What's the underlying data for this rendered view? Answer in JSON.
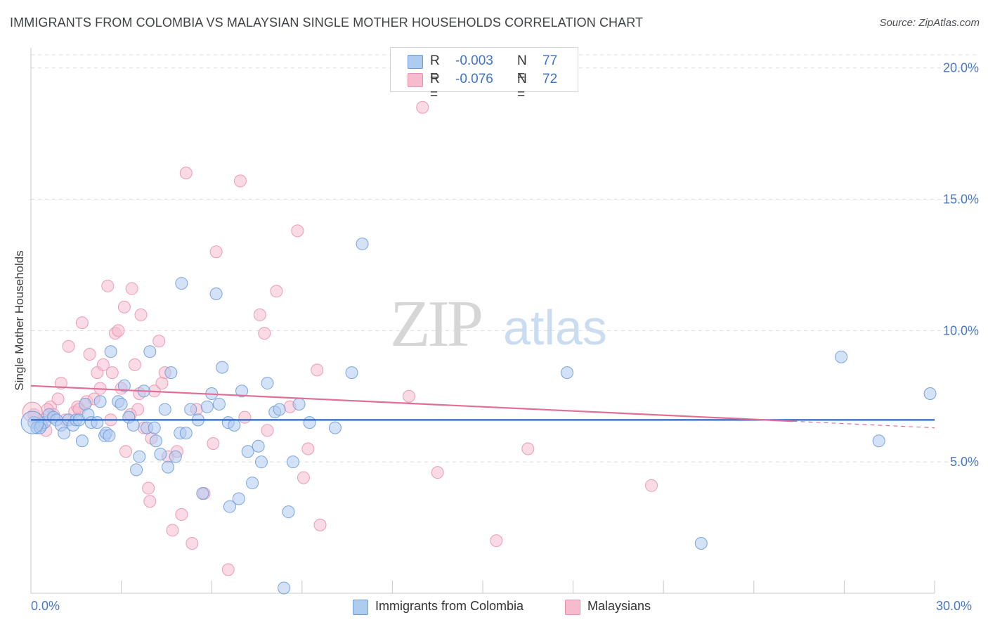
{
  "title": "IMMIGRANTS FROM COLOMBIA VS MALAYSIAN SINGLE MOTHER HOUSEHOLDS CORRELATION CHART",
  "source": "Source: ZipAtlas.com",
  "watermark": {
    "zip": "ZIP",
    "atlas": "atlas"
  },
  "legend_top": [
    {
      "r_label": "R =",
      "r_value": "-0.003",
      "n_label": "N =",
      "n_value": "77"
    },
    {
      "r_label": "R =",
      "r_value": "-0.076",
      "n_label": "N =",
      "n_value": "72"
    }
  ],
  "legend_bottom": [
    "Immigrants from Colombia",
    "Malaysians"
  ],
  "colors": {
    "blue_fill": "#aecbf0",
    "blue_stroke": "#6f9bd8",
    "blue_line": "#2563c9",
    "pink_fill": "#f6bccd",
    "pink_stroke": "#e893b0",
    "pink_line": "#e06f98",
    "grid": "#dcdcdc",
    "tick_text": "#4a78c2"
  },
  "chart_data": {
    "type": "scatter",
    "title": "IMMIGRANTS FROM COLOMBIA VS MALAYSIAN SINGLE MOTHER HOUSEHOLDS CORRELATION CHART",
    "xlabel": "",
    "ylabel": "Single Mother Households",
    "xlim": [
      0,
      30
    ],
    "ylim": [
      0,
      20.5
    ],
    "x_ticks": [
      "0.0%",
      "30.0%"
    ],
    "y_ticks": [
      {
        "value": 5,
        "label": "5.0%"
      },
      {
        "value": 10,
        "label": "10.0%"
      },
      {
        "value": 15,
        "label": "15.0%"
      },
      {
        "value": 20,
        "label": "20.0%"
      }
    ],
    "grid": "horizontal dashed",
    "legend": "top-center and bottom",
    "series": [
      {
        "name": "Immigrants from Colombia",
        "color": "#aecbf0",
        "trend": {
          "x": [
            0,
            30
          ],
          "y": [
            6.6,
            6.6
          ]
        },
        "points": [
          [
            0.1,
            6.5
          ],
          [
            0.2,
            6.3
          ],
          [
            0.35,
            6.4
          ],
          [
            0.45,
            6.5
          ],
          [
            0.6,
            6.8
          ],
          [
            0.75,
            6.7
          ],
          [
            0.85,
            6.6
          ],
          [
            1.0,
            6.4
          ],
          [
            1.1,
            6.1
          ],
          [
            1.25,
            6.6
          ],
          [
            1.4,
            6.4
          ],
          [
            1.5,
            6.6
          ],
          [
            1.6,
            6.6
          ],
          [
            1.7,
            5.8
          ],
          [
            1.8,
            7.2
          ],
          [
            1.9,
            6.8
          ],
          [
            2.0,
            6.5
          ],
          [
            2.3,
            7.3
          ],
          [
            2.45,
            6.0
          ],
          [
            2.5,
            6.1
          ],
          [
            2.6,
            6.0
          ],
          [
            2.65,
            9.2
          ],
          [
            2.9,
            7.3
          ],
          [
            3.0,
            7.2
          ],
          [
            3.1,
            7.9
          ],
          [
            3.25,
            6.7
          ],
          [
            3.4,
            6.4
          ],
          [
            3.5,
            4.7
          ],
          [
            3.6,
            5.2
          ],
          [
            3.75,
            7.7
          ],
          [
            3.85,
            6.3
          ],
          [
            3.95,
            9.2
          ],
          [
            4.1,
            6.3
          ],
          [
            4.15,
            5.8
          ],
          [
            4.3,
            5.3
          ],
          [
            4.45,
            7.0
          ],
          [
            4.55,
            4.8
          ],
          [
            4.65,
            8.4
          ],
          [
            4.8,
            5.2
          ],
          [
            4.95,
            6.1
          ],
          [
            5.15,
            6.1
          ],
          [
            5.0,
            11.8
          ],
          [
            5.3,
            7.0
          ],
          [
            5.55,
            6.6
          ],
          [
            5.7,
            3.8
          ],
          [
            5.85,
            7.1
          ],
          [
            6.0,
            7.6
          ],
          [
            6.15,
            11.4
          ],
          [
            6.25,
            7.2
          ],
          [
            6.35,
            8.6
          ],
          [
            6.55,
            6.5
          ],
          [
            6.6,
            3.3
          ],
          [
            6.75,
            6.4
          ],
          [
            6.9,
            3.6
          ],
          [
            7.0,
            7.7
          ],
          [
            7.2,
            5.4
          ],
          [
            7.35,
            4.2
          ],
          [
            7.55,
            5.6
          ],
          [
            7.65,
            5.0
          ],
          [
            7.85,
            8.0
          ],
          [
            8.1,
            6.9
          ],
          [
            8.25,
            7.0
          ],
          [
            8.4,
            0.2
          ],
          [
            8.55,
            3.1
          ],
          [
            8.7,
            5.0
          ],
          [
            8.9,
            7.2
          ],
          [
            9.25,
            6.5
          ],
          [
            10.1,
            6.3
          ],
          [
            10.65,
            8.4
          ],
          [
            11.0,
            13.3
          ],
          [
            17.8,
            8.4
          ],
          [
            22.25,
            1.9
          ],
          [
            26.9,
            9.0
          ],
          [
            28.15,
            5.8
          ],
          [
            29.85,
            7.6
          ],
          [
            0.3,
            6.3
          ],
          [
            2.2,
            6.5
          ]
        ]
      },
      {
        "name": "Malaysians",
        "color": "#f6bccd",
        "trend": {
          "x": [
            0,
            25.3
          ],
          "y": [
            7.9,
            6.55
          ]
        },
        "points": [
          [
            0.1,
            6.8
          ],
          [
            0.25,
            6.4
          ],
          [
            0.5,
            6.2
          ],
          [
            0.65,
            7.1
          ],
          [
            0.75,
            6.8
          ],
          [
            0.9,
            7.4
          ],
          [
            1.0,
            8.0
          ],
          [
            1.25,
            9.4
          ],
          [
            1.45,
            6.9
          ],
          [
            1.55,
            7.1
          ],
          [
            1.7,
            10.3
          ],
          [
            1.85,
            7.3
          ],
          [
            1.95,
            9.1
          ],
          [
            2.1,
            7.4
          ],
          [
            2.2,
            8.4
          ],
          [
            2.3,
            7.8
          ],
          [
            2.4,
            8.7
          ],
          [
            2.55,
            11.7
          ],
          [
            2.7,
            8.4
          ],
          [
            2.8,
            9.9
          ],
          [
            2.9,
            10.0
          ],
          [
            3.0,
            7.8
          ],
          [
            3.1,
            10.9
          ],
          [
            3.15,
            5.4
          ],
          [
            3.35,
            11.6
          ],
          [
            3.45,
            8.7
          ],
          [
            3.55,
            7.0
          ],
          [
            3.6,
            7.6
          ],
          [
            3.65,
            10.6
          ],
          [
            3.75,
            6.3
          ],
          [
            3.9,
            4.0
          ],
          [
            3.95,
            3.5
          ],
          [
            4.1,
            7.7
          ],
          [
            4.25,
            9.6
          ],
          [
            4.35,
            8.0
          ],
          [
            4.45,
            8.4
          ],
          [
            4.55,
            5.2
          ],
          [
            4.7,
            2.4
          ],
          [
            4.85,
            5.4
          ],
          [
            5.0,
            3.0
          ],
          [
            5.15,
            16.0
          ],
          [
            5.35,
            1.9
          ],
          [
            5.5,
            7.0
          ],
          [
            5.75,
            3.8
          ],
          [
            6.05,
            5.7
          ],
          [
            6.15,
            13.0
          ],
          [
            6.55,
            0.9
          ],
          [
            6.95,
            15.7
          ],
          [
            7.1,
            6.7
          ],
          [
            7.6,
            10.6
          ],
          [
            7.75,
            9.9
          ],
          [
            7.85,
            6.2
          ],
          [
            8.15,
            11.5
          ],
          [
            8.6,
            7.1
          ],
          [
            8.85,
            13.8
          ],
          [
            9.05,
            4.4
          ],
          [
            9.2,
            5.5
          ],
          [
            9.5,
            8.5
          ],
          [
            9.6,
            2.6
          ],
          [
            12.55,
            7.5
          ],
          [
            13.0,
            18.5
          ],
          [
            13.5,
            4.6
          ],
          [
            15.45,
            2.0
          ],
          [
            16.5,
            5.5
          ],
          [
            20.6,
            4.1
          ],
          [
            0.4,
            6.6
          ],
          [
            1.15,
            6.6
          ],
          [
            1.6,
            7.0
          ],
          [
            2.65,
            6.6
          ],
          [
            4.0,
            5.9
          ],
          [
            0.55,
            7.0
          ],
          [
            3.3,
            6.8
          ]
        ]
      }
    ]
  }
}
